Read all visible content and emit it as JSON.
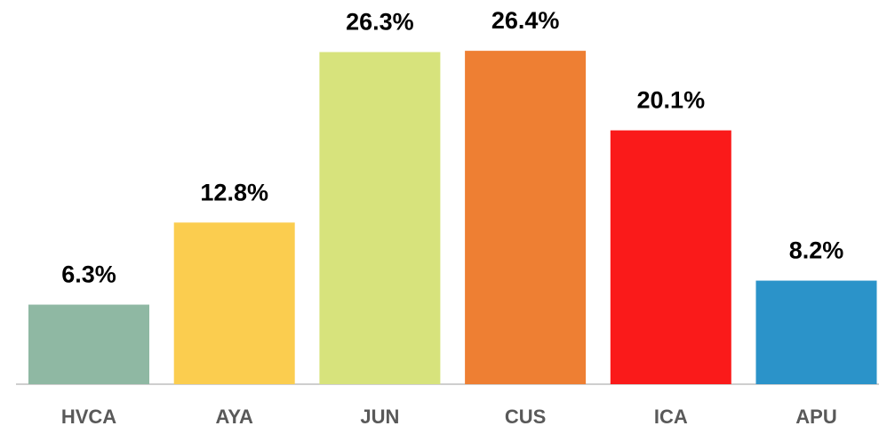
{
  "chart_data": {
    "type": "bar",
    "categories": [
      "HVCA",
      "AYA",
      "JUN",
      "CUS",
      "ICA",
      "APU"
    ],
    "values": [
      6.3,
      12.8,
      26.3,
      26.4,
      20.1,
      8.2
    ],
    "value_labels": [
      "6.3%",
      "12.8%",
      "26.3%",
      "26.4%",
      "20.1%",
      "8.2%"
    ],
    "colors": [
      "#8fb8a3",
      "#fbcd4f",
      "#d7e37c",
      "#ee7f33",
      "#fa1a1a",
      "#2b93c9"
    ]
  }
}
